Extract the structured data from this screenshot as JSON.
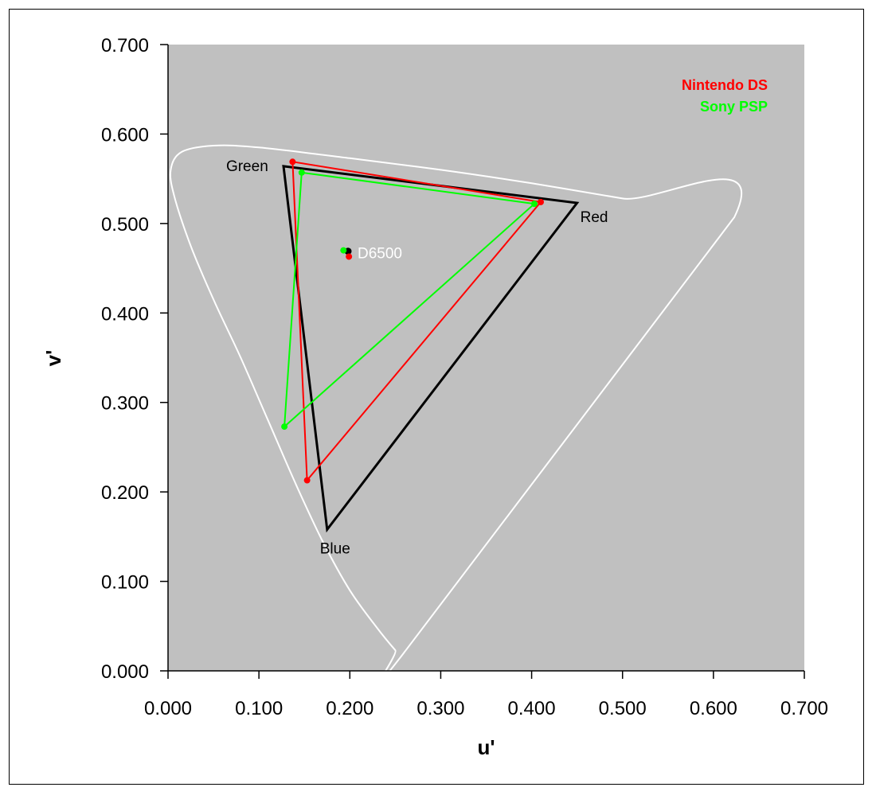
{
  "chart_data": {
    "type": "line",
    "xlabel": "u'",
    "ylabel": "v'",
    "xlim": [
      0.0,
      0.7
    ],
    "ylim": [
      0.0,
      0.7
    ],
    "xticks": [
      "0.000",
      "0.100",
      "0.200",
      "0.300",
      "0.400",
      "0.500",
      "0.600",
      "0.700"
    ],
    "yticks": [
      "0.000",
      "0.100",
      "0.200",
      "0.300",
      "0.400",
      "0.500",
      "0.600",
      "0.700"
    ],
    "grid": false,
    "background_color": "#c0c0c0",
    "legend_position": "top-right",
    "spectral_locus": {
      "color": "#ffffff",
      "points": [
        [
          0.2568,
          0.0165
        ],
        [
          0.25,
          0.023
        ],
        [
          0.23,
          0.048
        ],
        [
          0.2,
          0.09
        ],
        [
          0.17,
          0.145
        ],
        [
          0.14,
          0.21
        ],
        [
          0.11,
          0.28
        ],
        [
          0.08,
          0.35
        ],
        [
          0.05,
          0.415
        ],
        [
          0.025,
          0.475
        ],
        [
          0.007,
          0.53
        ],
        [
          0.003,
          0.56
        ],
        [
          0.015,
          0.58
        ],
        [
          0.05,
          0.587
        ],
        [
          0.1,
          0.585
        ],
        [
          0.2,
          0.573
        ],
        [
          0.3,
          0.56
        ],
        [
          0.4,
          0.545
        ],
        [
          0.5,
          0.528
        ],
        [
          0.623,
          0.507
        ]
      ]
    },
    "series": [
      {
        "name": "Nintendo DS",
        "color": "#ff0000",
        "gamut": [
          [
            0.137,
            0.569
          ],
          [
            0.41,
            0.524
          ],
          [
            0.153,
            0.213
          ]
        ],
        "white_point": [
          0.199,
          0.463
        ]
      },
      {
        "name": "Sony PSP",
        "color": "#00ff00",
        "gamut": [
          [
            0.147,
            0.557
          ],
          [
            0.403,
            0.522
          ],
          [
            0.128,
            0.273
          ]
        ],
        "white_point": [
          0.193,
          0.47
        ]
      }
    ],
    "reference": {
      "color": "#000000",
      "gamut": [
        [
          0.127,
          0.564
        ],
        [
          0.45,
          0.523
        ],
        [
          0.175,
          0.158
        ]
      ],
      "white_point": [
        0.198,
        0.469
      ],
      "labels": {
        "green": "Green",
        "red": "Red",
        "blue": "Blue",
        "white": "D6500"
      }
    }
  }
}
